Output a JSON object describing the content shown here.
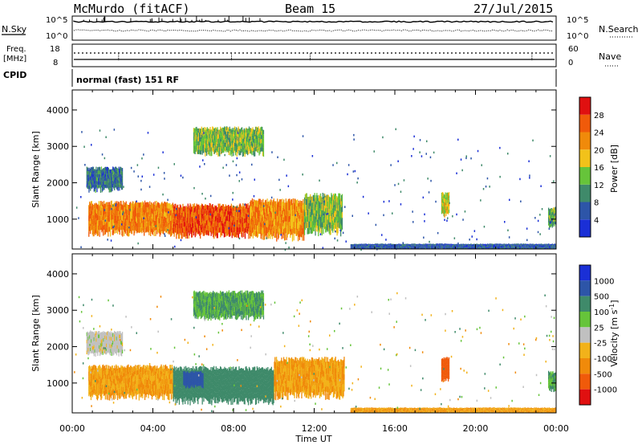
{
  "header": {
    "station": "McMurdo (fitACF)",
    "beam": "Beam 15",
    "date": "27/Jul/2015"
  },
  "panels": {
    "sky_label": "N.Sky",
    "sky_ticks": [
      "10^5",
      "10^0"
    ],
    "search_ticks": [
      "10^5",
      "10^0"
    ],
    "search_label": "N.Search",
    "freq_label_1": "Freq.",
    "freq_label_2": "[MHz]",
    "freq_ticks": [
      "18",
      "8"
    ],
    "nave_ticks": [
      "60",
      "0"
    ],
    "nave_label": "Nave",
    "cpid_label": "CPID",
    "cpid_text": "normal (fast) 151 RF"
  },
  "colors": {
    "power": [
      "#1a2fd6",
      "#2d55a8",
      "#3f8a6a",
      "#66c43a",
      "#f2c21a",
      "#f08a0a",
      "#f05a0a",
      "#e01010"
    ],
    "velocity": [
      "#e01010",
      "#f05a0a",
      "#f08a0a",
      "#f2b21a",
      "#c0c0c0",
      "#66c43a",
      "#3f8a6a",
      "#2d55a8",
      "#1a2fd6"
    ]
  },
  "chart_data": [
    {
      "type": "heatmap",
      "name": "power",
      "ylabel": "Slant Range [km]",
      "xlabel": "Time UT",
      "xticks": [
        "00:00",
        "04:00",
        "08:00",
        "12:00",
        "16:00",
        "20:00",
        "00:00"
      ],
      "xlim_hours": [
        0,
        24
      ],
      "yticks": [
        1000,
        2000,
        3000,
        4000
      ],
      "ylim": [
        180,
        4550
      ],
      "colorbar_label": "Power [dB]",
      "colorbar_ticks": [
        4,
        8,
        12,
        16,
        20,
        24,
        28
      ],
      "colorbar_range": [
        0,
        32
      ],
      "regions": [
        {
          "t": [
            0.8,
            5.0
          ],
          "r": [
            620,
            1450
          ],
          "v": 23
        },
        {
          "t": [
            5.0,
            8.8
          ],
          "r": [
            560,
            1380
          ],
          "v": 26
        },
        {
          "t": [
            8.8,
            11.5
          ],
          "r": [
            500,
            1500
          ],
          "v": 22
        },
        {
          "t": [
            11.5,
            13.4
          ],
          "r": [
            650,
            1650
          ],
          "v": 14
        },
        {
          "t": [
            6.0,
            9.5
          ],
          "r": [
            2800,
            3500
          ],
          "v": 14
        },
        {
          "t": [
            0.7,
            2.5
          ],
          "r": [
            1800,
            2400
          ],
          "v": 8
        },
        {
          "t": [
            18.3,
            18.7
          ],
          "r": [
            1100,
            1700
          ],
          "v": 17
        },
        {
          "t": [
            23.6,
            24.0
          ],
          "r": [
            800,
            1300
          ],
          "v": 12
        },
        {
          "t": [
            13.8,
            24.0
          ],
          "r": [
            180,
            320
          ],
          "v": 6
        }
      ]
    },
    {
      "type": "heatmap",
      "name": "velocity",
      "ylabel": "Slant Range [km]",
      "xlabel": "Time UT",
      "xticks": [
        "00:00",
        "04:00",
        "08:00",
        "12:00",
        "16:00",
        "20:00",
        "00:00"
      ],
      "xlim_hours": [
        0,
        24
      ],
      "yticks": [
        1000,
        2000,
        3000,
        4000
      ],
      "ylim": [
        180,
        4550
      ],
      "colorbar_label": "Velocity [m s^-1]",
      "colorbar_ticks": [
        "1000",
        "500",
        "100",
        "25",
        "-25",
        "-100",
        "-500",
        "-1000"
      ],
      "regions": [
        {
          "t": [
            0.8,
            5.0
          ],
          "r": [
            620,
            1450
          ],
          "v": -100
        },
        {
          "t": [
            5.0,
            10.0
          ],
          "r": [
            500,
            1400
          ],
          "v": 300
        },
        {
          "t": [
            10.0,
            13.5
          ],
          "r": [
            650,
            1650
          ],
          "v": -100
        },
        {
          "t": [
            5.5,
            6.5
          ],
          "r": [
            900,
            1300
          ],
          "v": 700
        },
        {
          "t": [
            6.0,
            9.5
          ],
          "r": [
            2800,
            3500
          ],
          "v": 100
        },
        {
          "t": [
            0.7,
            2.5
          ],
          "r": [
            1800,
            2400
          ],
          "v": 0
        },
        {
          "t": [
            18.3,
            18.7
          ],
          "r": [
            1100,
            1700
          ],
          "v": -700
        },
        {
          "t": [
            23.6,
            24.0
          ],
          "r": [
            800,
            1300
          ],
          "v": 100
        },
        {
          "t": [
            13.8,
            24.0
          ],
          "r": [
            180,
            320
          ],
          "v": -100
        }
      ]
    }
  ]
}
